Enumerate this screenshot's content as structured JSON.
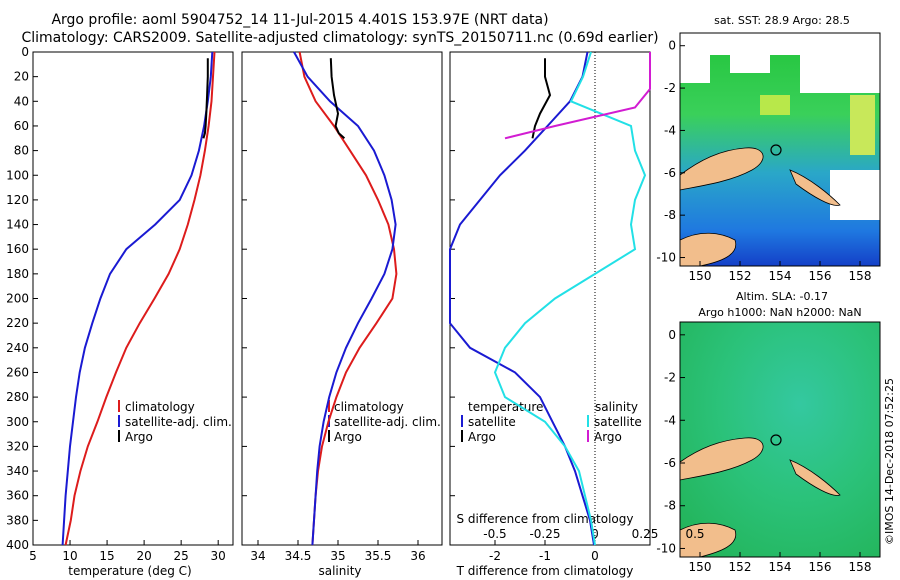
{
  "header": {
    "line1": "Argo profile: aoml 5904752_14 11-Jul-2015 4.401S 153.97E (NRT data)",
    "line2": "Climatology: CARS2009. Satellite-adjusted climatology: synTS_20150711.nc (0.69d earlier)"
  },
  "colors": {
    "climatology": "#dd1c1c",
    "satellite": "#1a1ad2",
    "argo": "#000000",
    "sat_s": "#22e0e6",
    "argo_s": "#d21cd2"
  },
  "side_label": "©IMOS 14-Dec-2018 07:52:25",
  "chart_data": [
    {
      "type": "line",
      "title": "",
      "xlabel": "temperature (deg C)",
      "ylabel": "",
      "xlim": [
        5,
        32
      ],
      "ylim": [
        400,
        0
      ],
      "xticks": [
        5,
        10,
        15,
        20,
        25,
        30
      ],
      "yticks": [
        0,
        20,
        40,
        60,
        80,
        100,
        120,
        140,
        160,
        180,
        200,
        220,
        240,
        260,
        280,
        300,
        320,
        340,
        360,
        380,
        400
      ],
      "legend_position": "bottom-right",
      "series": [
        {
          "name": "climatology",
          "color": "#dd1c1c",
          "x": [
            29.5,
            29.3,
            29.1,
            28.7,
            28.2,
            27.6,
            26.8,
            25.9,
            24.8,
            23.3,
            21.4,
            19.4,
            17.6,
            16.2,
            14.9,
            13.7,
            12.4,
            11.4,
            10.6,
            10.1,
            9.4
          ],
          "y": [
            0,
            20,
            40,
            60,
            80,
            100,
            120,
            140,
            160,
            180,
            200,
            220,
            240,
            260,
            280,
            300,
            320,
            340,
            360,
            380,
            400
          ]
        },
        {
          "name": "satellite-adj. clim.",
          "color": "#1a1ad2",
          "x": [
            29.2,
            29.0,
            28.6,
            28.1,
            27.4,
            26.4,
            24.8,
            21.5,
            17.6,
            15.4,
            14.1,
            13.0,
            12.0,
            11.3,
            10.8,
            10.4,
            10.0,
            9.7,
            9.4,
            9.2,
            9.0
          ],
          "y": [
            0,
            20,
            40,
            60,
            80,
            100,
            120,
            140,
            160,
            180,
            200,
            220,
            240,
            260,
            280,
            300,
            320,
            340,
            360,
            380,
            400
          ]
        },
        {
          "name": "Argo",
          "color": "#000000",
          "x": [
            28.6,
            28.6,
            28.5,
            28.4,
            28.3,
            28.2,
            28.0
          ],
          "y": [
            5,
            20,
            35,
            50,
            60,
            66,
            70
          ]
        }
      ]
    },
    {
      "type": "line",
      "xlabel": "salinity",
      "xlim": [
        33.8,
        36.3
      ],
      "ylim": [
        400,
        0
      ],
      "xticks": [
        34,
        34.5,
        35,
        35.5,
        36
      ],
      "legend_position": "bottom-right",
      "series": [
        {
          "name": "climatology",
          "color": "#dd1c1c",
          "x": [
            34.52,
            34.58,
            34.72,
            34.95,
            35.15,
            35.35,
            35.5,
            35.63,
            35.7,
            35.73,
            35.68,
            35.48,
            35.27,
            35.1,
            34.98,
            34.88,
            34.8,
            34.75,
            34.72,
            34.7,
            34.68
          ],
          "y": [
            0,
            20,
            40,
            60,
            80,
            100,
            120,
            140,
            160,
            180,
            200,
            220,
            240,
            260,
            280,
            300,
            320,
            340,
            360,
            380,
            400
          ]
        },
        {
          "name": "satellite-adj. clim.",
          "color": "#1a1ad2",
          "x": [
            34.45,
            34.62,
            34.9,
            35.25,
            35.45,
            35.58,
            35.67,
            35.72,
            35.68,
            35.58,
            35.42,
            35.25,
            35.1,
            34.98,
            34.89,
            34.82,
            34.77,
            34.74,
            34.72,
            34.7,
            34.68
          ],
          "y": [
            0,
            20,
            40,
            60,
            80,
            100,
            120,
            140,
            160,
            180,
            200,
            220,
            240,
            260,
            280,
            300,
            320,
            340,
            360,
            380,
            400
          ]
        },
        {
          "name": "Argo",
          "color": "#000000",
          "x": [
            34.91,
            34.92,
            34.95,
            35.0,
            34.97,
            35.01,
            35.08
          ],
          "y": [
            5,
            20,
            35,
            50,
            60,
            66,
            70
          ]
        }
      ]
    },
    {
      "type": "line",
      "xlabel": "T difference from climatology",
      "xlabel_top": "S difference from climatology",
      "xlim": [
        -2.9,
        1.1
      ],
      "xlim_top": [
        -0.725,
        0.275
      ],
      "ylim": [
        400,
        0
      ],
      "xticks": [
        -2,
        -1,
        0
      ],
      "xticks_top": [
        -0.5,
        -0.25,
        0,
        0.25,
        0.5
      ],
      "legend_left_title": "temperature",
      "legend_right_title": "salinity",
      "series": [
        {
          "name": "satellite",
          "group": "temperature",
          "color": "#1a1ad2",
          "x": [
            -0.15,
            -0.25,
            -0.5,
            -0.95,
            -1.4,
            -1.9,
            -2.3,
            -2.7,
            -2.9,
            -2.9,
            -2.9,
            -2.9,
            -2.5,
            -1.6,
            -1.1,
            -0.85,
            -0.6,
            -0.4,
            -0.25,
            -0.1,
            -0.02
          ],
          "y": [
            0,
            20,
            40,
            60,
            80,
            100,
            120,
            140,
            160,
            180,
            200,
            220,
            240,
            260,
            280,
            300,
            320,
            340,
            360,
            380,
            400
          ]
        },
        {
          "name": "Argo",
          "group": "temperature",
          "color": "#000000",
          "x": [
            -1.0,
            -1.0,
            -0.9,
            -1.1,
            -1.2,
            -1.25
          ],
          "y": [
            5,
            20,
            35,
            50,
            60,
            70
          ]
        },
        {
          "name": "satellite",
          "group": "salinity",
          "color": "#22e0e6",
          "x": [
            -0.02,
            -0.06,
            -0.12,
            0.18,
            0.2,
            0.25,
            0.2,
            0.18,
            0.2,
            0.0,
            -0.2,
            -0.35,
            -0.45,
            -0.5,
            -0.45,
            -0.25,
            -0.15,
            -0.08,
            -0.05,
            -0.02,
            0.0
          ],
          "y": [
            0,
            20,
            40,
            60,
            80,
            100,
            120,
            140,
            160,
            180,
            200,
            220,
            240,
            260,
            280,
            300,
            320,
            340,
            360,
            380,
            400
          ]
        },
        {
          "name": "Argo",
          "group": "salinity",
          "color": "#d21cd2",
          "x": [
            1.05,
            0.85,
            0.6,
            0.2,
            -0.2,
            -0.45
          ],
          "y": [
            0,
            15,
            30,
            45,
            60,
            70
          ]
        }
      ]
    },
    {
      "type": "heatmap",
      "title": "sat. SST: 28.9 Argo: 28.5",
      "xlim": [
        149,
        159
      ],
      "ylim": [
        -10.4,
        0.6
      ],
      "xticks": [
        150,
        152,
        154,
        156,
        158
      ],
      "yticks": [
        0,
        -2,
        -4,
        -6,
        -8,
        -10
      ],
      "marker_position": [
        154.0,
        -4.4
      ]
    },
    {
      "type": "heatmap",
      "title": "Altim. SLA: -0.17",
      "subtitle": "Argo h1000: NaN h2000: NaN",
      "xlim": [
        149,
        159
      ],
      "ylim": [
        -10.4,
        0.6
      ],
      "xticks": [
        150,
        152,
        154,
        156,
        158
      ],
      "yticks": [
        0,
        -2,
        -4,
        -6,
        -8,
        -10
      ],
      "marker_position": [
        154.0,
        -4.4
      ]
    }
  ]
}
